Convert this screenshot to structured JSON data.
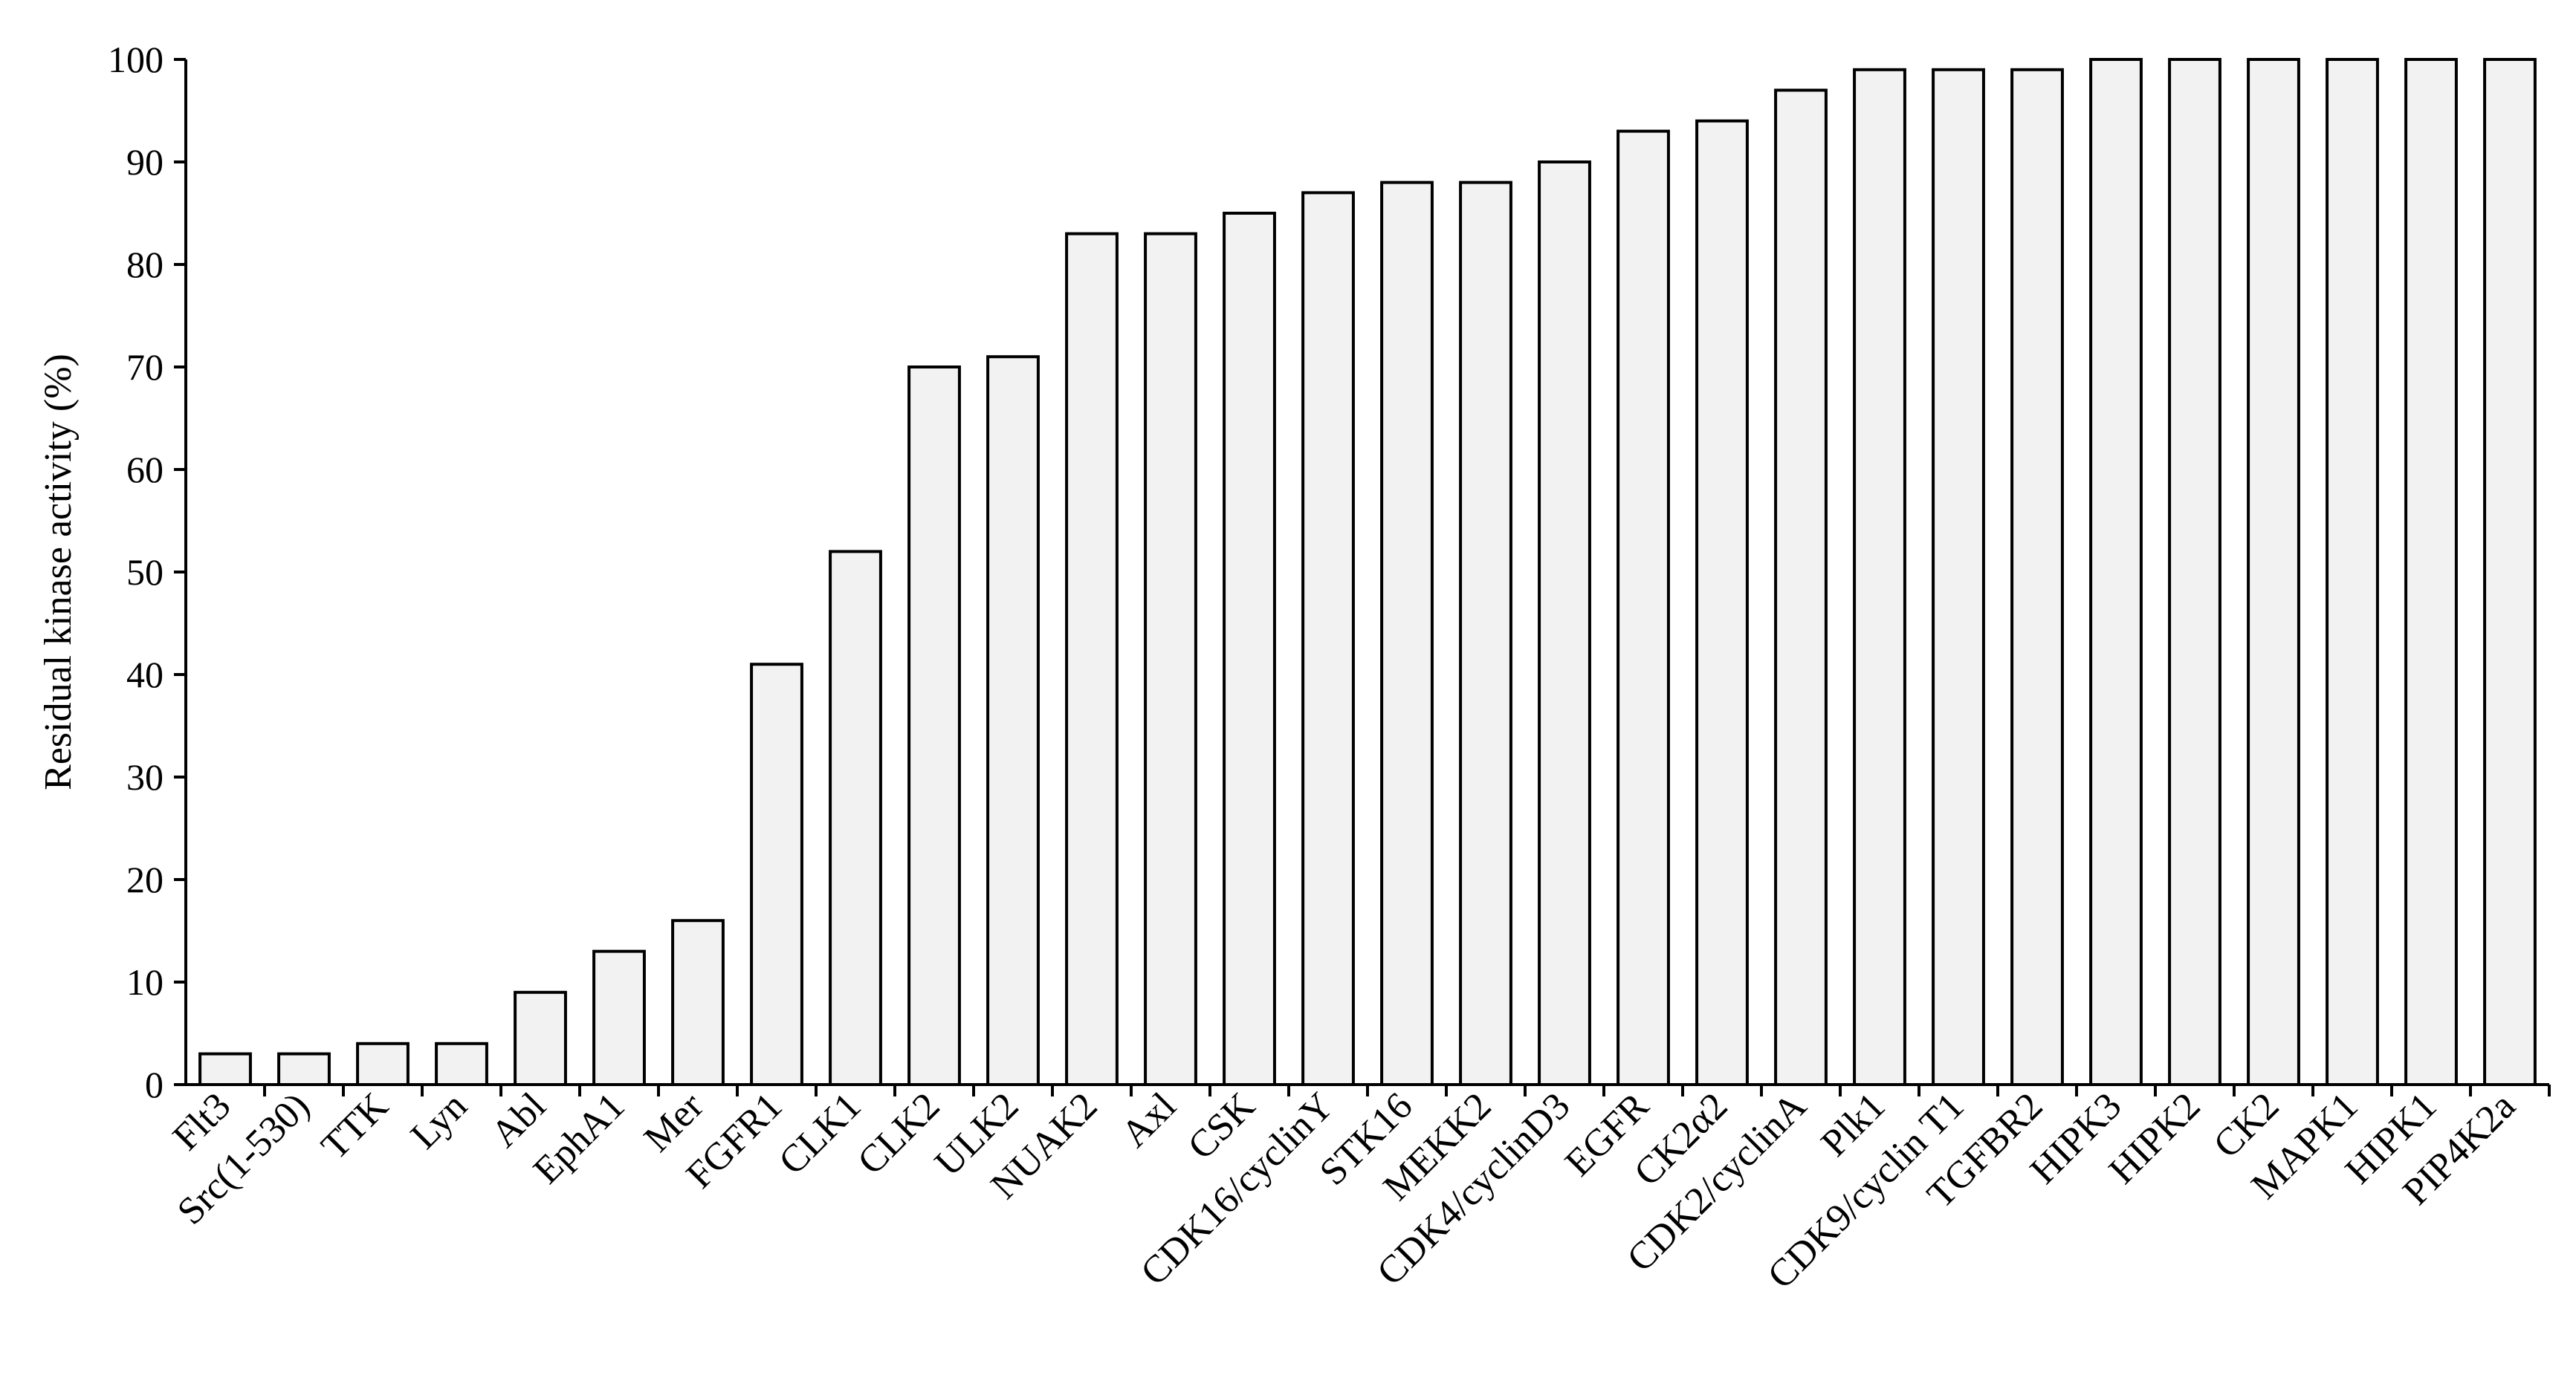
{
  "chart_data": {
    "type": "bar",
    "title": "",
    "xlabel": "",
    "ylabel": "Residual kinase activity (%)",
    "ylim": [
      0,
      100
    ],
    "yticks": [
      0,
      10,
      20,
      30,
      40,
      50,
      60,
      70,
      80,
      90,
      100
    ],
    "grid": false,
    "legend": "none",
    "bar_fill": "#f2f2f2",
    "bar_stroke": "#000000",
    "categories": [
      "Flt3",
      "Src(1-530)",
      "TTK",
      "Lyn",
      "Abl",
      "EphA1",
      "Mer",
      "FGFR1",
      "CLK1",
      "CLK2",
      "ULK2",
      "NUAK2",
      "Axl",
      "CSK",
      "CDK16/cyclinY",
      "STK16",
      "MEKK2",
      "CDK4/cyclinD3",
      "EGFR",
      "CK2α2",
      "CDK2/cyclinA",
      "Plk1",
      "CDK9/cyclin T1",
      "TGFBR2",
      "HIPK3",
      "HIPK2",
      "CK2",
      "MAPK1",
      "HIPK1",
      "PIP4K2a"
    ],
    "values": [
      3,
      3,
      4,
      4,
      9,
      13,
      16,
      41,
      52,
      70,
      71,
      83,
      83,
      85,
      87,
      88,
      88,
      90,
      93,
      94,
      97,
      99,
      99,
      99,
      100,
      100,
      100,
      100,
      100,
      100
    ]
  }
}
